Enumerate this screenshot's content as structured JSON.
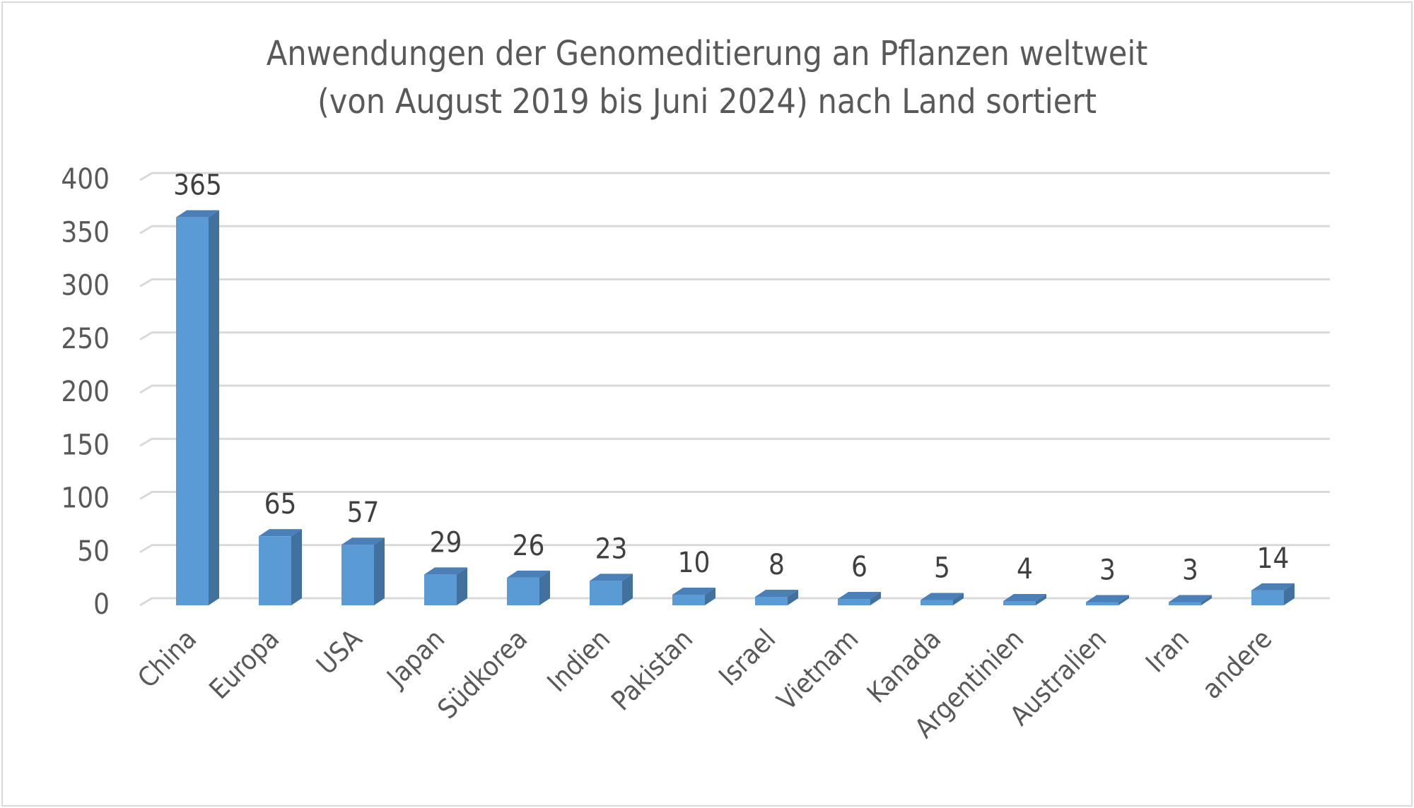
{
  "chart_data": {
    "type": "bar",
    "title_lines": [
      "Anwendungen der Genomeditierung an Pflanzen weltweit",
      "(von August 2019 bis Juni 2024) nach Land sortiert"
    ],
    "categories": [
      "China",
      "Europa",
      "USA",
      "Japan",
      "Südkorea",
      "Indien",
      "Pakistan",
      "Israel",
      "Vietnam",
      "Kanada",
      "Argentinien",
      "Australien",
      "Iran",
      "andere"
    ],
    "values": [
      365,
      65,
      57,
      29,
      26,
      23,
      10,
      8,
      6,
      5,
      4,
      3,
      3,
      14
    ],
    "xlabel": "",
    "ylabel": "",
    "ylim": [
      0,
      400
    ],
    "yticks": [
      0,
      50,
      100,
      150,
      200,
      250,
      300,
      350,
      400
    ],
    "grid": true,
    "style": "3d-column",
    "colors": {
      "front": "#5b9bd5",
      "side": "#41719c",
      "top": "#4a7fb8",
      "grid": "#d9d9d9",
      "text": "#595959"
    }
  }
}
